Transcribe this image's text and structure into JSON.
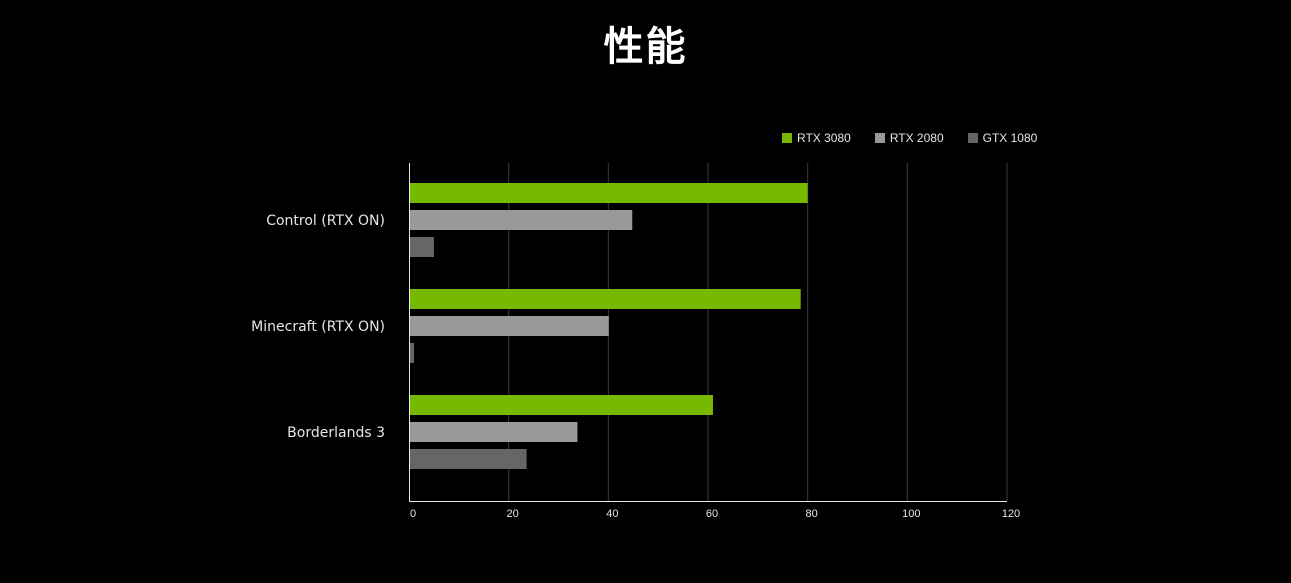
{
  "chart_data": {
    "type": "bar",
    "orientation": "horizontal",
    "title": "性能",
    "categories": [
      "Control (RTX ON)",
      "Minecraft (RTX ON)",
      "Borderlands 3"
    ],
    "series": [
      {
        "name": "RTX 3080",
        "color": "#76b900",
        "values": [
          80,
          78.6,
          61
        ]
      },
      {
        "name": "RTX 2080",
        "color": "#999999",
        "values": [
          44.8,
          40.1,
          33.8
        ]
      },
      {
        "name": "GTX 1080",
        "color": "#666666",
        "values": [
          5,
          1,
          23.6
        ]
      }
    ],
    "xlim": [
      0,
      120
    ],
    "xticks": [
      "0",
      "20",
      "40",
      "60",
      "80",
      "100",
      "120"
    ],
    "xlabel": "",
    "ylabel": "",
    "grid": "vertical",
    "legend_position": "top-right"
  }
}
